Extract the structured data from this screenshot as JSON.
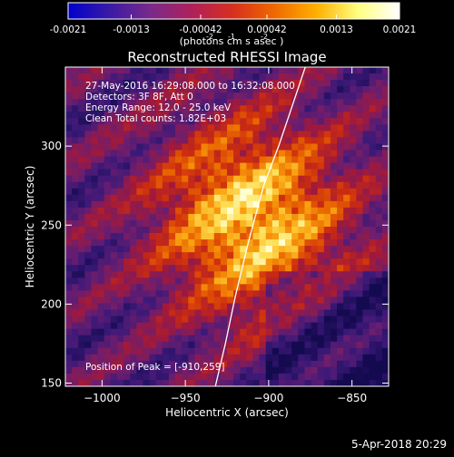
{
  "colorbar": {
    "tick_labels": [
      "-0.0021",
      "-0.0013",
      "-0.00042",
      "0.00042",
      "0.0013",
      "0.0021"
    ],
    "tick_values": [
      -0.0021,
      -0.0013,
      -0.00042,
      0.00042,
      0.0013,
      0.0021
    ],
    "range": [
      -0.0021,
      0.0021
    ],
    "units_text": "(photons cm    s    asec  )",
    "units_exponents": [
      "-2",
      "-1",
      "-2"
    ],
    "colors": [
      "#0000cc",
      "#3a1aa6",
      "#7a2a8a",
      "#b0205a",
      "#d8301c",
      "#f06a00",
      "#ffb000",
      "#ffff80",
      "#ffffff"
    ]
  },
  "chart_data": {
    "type": "heatmap",
    "title": "Reconstructed RHESSI Image",
    "xlabel": "Heliocentric X (arcsec)",
    "ylabel": "Heliocentric Y (arcsec)",
    "xlim": [
      -1022,
      -828
    ],
    "ylim": [
      148,
      350
    ],
    "x_ticks": [
      -1000,
      -950,
      -900,
      -850
    ],
    "x_tick_labels": [
      "−1000",
      "−950",
      "−900",
      "−850"
    ],
    "y_ticks": [
      150,
      200,
      250,
      300
    ],
    "y_tick_labels": [
      "150",
      "200",
      "250",
      "300"
    ],
    "annotations": [
      "27-May-2016 16:29:08.000 to 16:32:08.000",
      "Detectors: 3F 8F, Att 0",
      "Energy Range: 12.0 - 25.0 keV",
      "Clean     Total counts: 1.82E+03"
    ],
    "peak_label": "Position of Peak = [-910,259]",
    "peak_position": [
      -910,
      259
    ],
    "limb_curve": {
      "x": [
        -932,
        -926,
        -920,
        -912,
        -903,
        -894,
        -886,
        -878
      ],
      "y": [
        148,
        175,
        205,
        240,
        275,
        300,
        325,
        350
      ]
    }
  },
  "footer": {
    "date": "5-Apr-2018 20:29"
  }
}
